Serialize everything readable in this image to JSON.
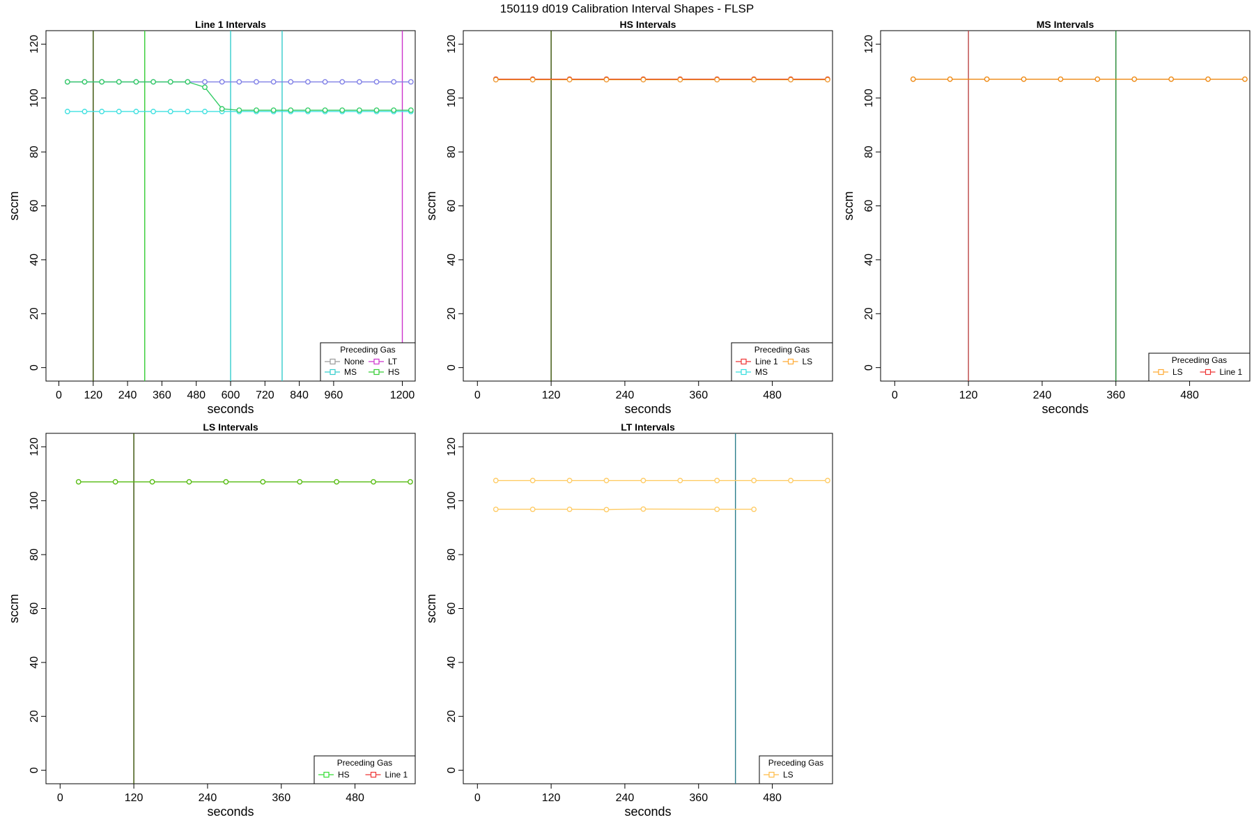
{
  "title": "150119   d019   Calibration Interval Shapes - FLSP",
  "chart_data": [
    {
      "type": "line",
      "title": "Line 1 Intervals",
      "xlabel": "seconds",
      "ylabel": "sccm",
      "xlim": [
        -45,
        1245
      ],
      "ylim": [
        -5,
        125
      ],
      "xticks": [
        0,
        120,
        240,
        360,
        480,
        600,
        720,
        840,
        960,
        1200
      ],
      "yticks": [
        0,
        20,
        40,
        60,
        80,
        100,
        120
      ],
      "series": [
        {
          "name": "None",
          "color": "#9a9a9a",
          "x": [],
          "y": []
        },
        {
          "name": "MS",
          "color": "#3ee0e0",
          "x": [
            30,
            90,
            150,
            210,
            270,
            330,
            390,
            450,
            510,
            570,
            630,
            690,
            750,
            810,
            870,
            930,
            990,
            1050,
            1110,
            1170,
            1230
          ],
          "y": [
            95,
            95,
            95,
            95,
            95,
            95,
            95,
            95,
            95,
            95,
            95,
            95,
            95,
            95,
            95,
            95,
            95,
            95,
            95,
            95,
            95
          ]
        },
        {
          "name": "LT",
          "color": "#7f7fe6",
          "x": [
            30,
            90,
            150,
            210,
            270,
            330,
            390,
            450,
            510,
            570,
            630,
            690,
            750,
            810,
            870,
            930,
            990,
            1050,
            1110,
            1170,
            1230
          ],
          "y": [
            106,
            106,
            106,
            106,
            106,
            106,
            106,
            106,
            106,
            106,
            106,
            106,
            106,
            106,
            106,
            106,
            106,
            106,
            106,
            106,
            106
          ]
        },
        {
          "name": "HS",
          "color": "#33cc66",
          "x": [
            30,
            90,
            150,
            210,
            270,
            330,
            390,
            450,
            510,
            570,
            630,
            690,
            750,
            810,
            870,
            930,
            990,
            1050,
            1110,
            1170,
            1230
          ],
          "y": [
            106,
            106,
            106,
            106,
            106,
            106,
            106,
            106,
            104,
            96,
            95.5,
            95.5,
            95.5,
            95.5,
            95.5,
            95.5,
            95.5,
            95.5,
            95.5,
            95.5,
            95.5
          ]
        }
      ],
      "vlines": [
        {
          "x": 120,
          "color": "#334d00"
        },
        {
          "x": 300,
          "color": "#33cc33"
        },
        {
          "x": 600,
          "color": "#33cccc"
        },
        {
          "x": 780,
          "color": "#33cccc"
        },
        {
          "x": 1200,
          "color": "#cc33cc"
        }
      ],
      "legend": {
        "title": "Preceding Gas",
        "columns": 2,
        "items": [
          {
            "label": "None",
            "color": "#9a9a9a"
          },
          {
            "label": "LT",
            "color": "#cc33cc"
          },
          {
            "label": "MS",
            "color": "#33cccc"
          },
          {
            "label": "HS",
            "color": "#33cc33"
          }
        ]
      }
    },
    {
      "type": "line",
      "title": "HS Intervals",
      "xlabel": "seconds",
      "ylabel": "sccm",
      "xlim": [
        -23,
        578
      ],
      "ylim": [
        -5,
        125
      ],
      "xticks": [
        0,
        120,
        240,
        360,
        480
      ],
      "yticks": [
        0,
        20,
        40,
        60,
        80,
        100,
        120
      ],
      "series": [
        {
          "name": "Line 1",
          "color": "#dd2211",
          "x": [
            30,
            90,
            150,
            210,
            270,
            330,
            390,
            450,
            510,
            570
          ],
          "y": [
            107,
            107,
            107,
            107,
            107,
            107,
            107,
            107,
            107,
            107
          ]
        },
        {
          "name": "LS",
          "color": "#ee9933",
          "x": [
            30,
            90,
            150,
            210,
            270,
            330,
            390,
            450,
            510,
            570
          ],
          "y": [
            106.8,
            106.8,
            106.8,
            106.8,
            106.8,
            106.8,
            106.8,
            106.8,
            106.8,
            106.8
          ]
        }
      ],
      "vlines": [
        {
          "x": 120,
          "color": "#334d00"
        }
      ],
      "legend": {
        "title": "Preceding Gas",
        "columns": 2,
        "items": [
          {
            "label": "Line 1",
            "color": "#ee3333"
          },
          {
            "label": "LS",
            "color": "#ffaa33"
          },
          {
            "label": "MS",
            "color": "#33dddd"
          }
        ]
      }
    },
    {
      "type": "line",
      "title": "MS Intervals",
      "xlabel": "seconds",
      "ylabel": "sccm",
      "xlim": [
        -23,
        578
      ],
      "ylim": [
        -5,
        125
      ],
      "xticks": [
        0,
        120,
        240,
        360,
        480
      ],
      "yticks": [
        0,
        20,
        40,
        60,
        80,
        100,
        120
      ],
      "series": [
        {
          "name": "LS",
          "color": "#ee8811",
          "x": [
            30,
            90,
            150,
            210,
            270,
            330,
            390,
            450,
            510,
            570
          ],
          "y": [
            107,
            107,
            107,
            107,
            107,
            107,
            107,
            107,
            107,
            107
          ]
        }
      ],
      "vlines": [
        {
          "x": 120,
          "color": "#bb4444"
        },
        {
          "x": 360,
          "color": "#228833"
        }
      ],
      "legend": {
        "title": "Preceding Gas",
        "columns": 2,
        "items": [
          {
            "label": "LS",
            "color": "#ffaa33"
          },
          {
            "label": "Line 1",
            "color": "#ee3333"
          }
        ]
      }
    },
    {
      "type": "line",
      "title": "LS Intervals",
      "xlabel": "seconds",
      "ylabel": "sccm",
      "xlim": [
        -23,
        578
      ],
      "ylim": [
        -5,
        125
      ],
      "xticks": [
        0,
        120,
        240,
        360,
        480
      ],
      "yticks": [
        0,
        20,
        40,
        60,
        80,
        100,
        120
      ],
      "series": [
        {
          "name": "HS",
          "color": "#55bb11",
          "x": [
            30,
            90,
            150,
            210,
            270,
            330,
            390,
            450,
            510,
            570
          ],
          "y": [
            107,
            107,
            107,
            107,
            107,
            107,
            107,
            107,
            107,
            107
          ]
        }
      ],
      "vlines": [
        {
          "x": 120,
          "color": "#334d00"
        }
      ],
      "legend": {
        "title": "Preceding Gas",
        "columns": 2,
        "items": [
          {
            "label": "HS",
            "color": "#33dd33"
          },
          {
            "label": "Line 1",
            "color": "#ee3333"
          }
        ]
      }
    },
    {
      "type": "line",
      "title": "LT Intervals",
      "xlabel": "seconds",
      "ylabel": "sccm",
      "xlim": [
        -23,
        578
      ],
      "ylim": [
        -5,
        125
      ],
      "xticks": [
        0,
        120,
        240,
        360,
        480
      ],
      "yticks": [
        0,
        20,
        40,
        60,
        80,
        100,
        120
      ],
      "series": [
        {
          "name": "LS",
          "color": "#ffcc66",
          "x": [
            30,
            90,
            150,
            210,
            270,
            330,
            390,
            450,
            510,
            570
          ],
          "y": [
            107.5,
            107.5,
            107.5,
            107.5,
            107.5,
            107.5,
            107.5,
            107.5,
            107.5,
            107.5
          ]
        },
        {
          "name": "LS",
          "color": "#ffcc66",
          "x": [
            30,
            90,
            150,
            210,
            270,
            390,
            450
          ],
          "y": [
            96.8,
            96.8,
            96.8,
            96.7,
            96.9,
            96.8,
            96.8
          ]
        }
      ],
      "vlines": [
        {
          "x": 420,
          "color": "#2d7d8c"
        }
      ],
      "legend": {
        "title": "Preceding Gas",
        "columns": 1,
        "items": [
          {
            "label": "LS",
            "color": "#ffbb44"
          }
        ]
      }
    }
  ]
}
